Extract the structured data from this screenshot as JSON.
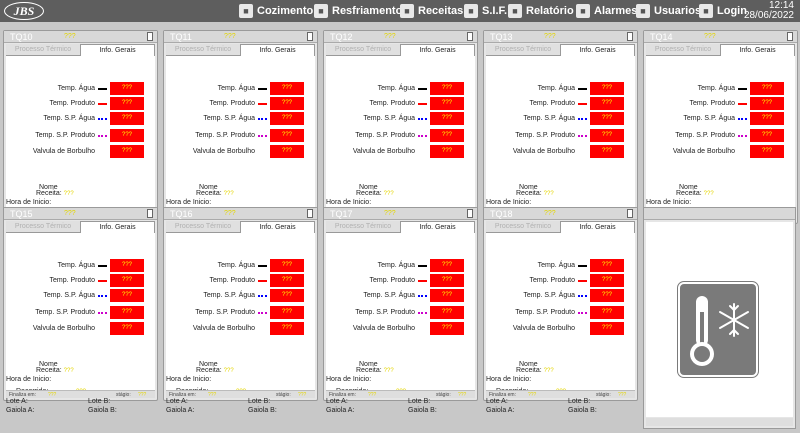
{
  "header": {
    "logo_text": "JBS",
    "nav": [
      {
        "label": "Cozimento",
        "icon": "cooking-icon"
      },
      {
        "label": "Resfriamento",
        "icon": "cooling-icon"
      },
      {
        "label": "Receitas",
        "icon": "recipes-icon"
      },
      {
        "label": "S.I.F.",
        "icon": "sif-icon"
      },
      {
        "label": "Relatório",
        "icon": "report-icon"
      },
      {
        "label": "Alarmes",
        "icon": "alarm-icon"
      },
      {
        "label": "Usuarios",
        "icon": "users-icon"
      },
      {
        "label": "Login",
        "icon": "login-icon"
      }
    ],
    "time": "12:14",
    "date": "28/06/2022"
  },
  "tabs": {
    "process": "Processo Térmico",
    "info": "Info. Gerais"
  },
  "rows": [
    {
      "label": "Temp. Água",
      "indicator_color": "#000000",
      "indicator_style": "solid"
    },
    {
      "label": "Temp. Produto",
      "indicator_color": "#ff0000",
      "indicator_style": "solid"
    },
    {
      "label": "Temp. S.P. Água",
      "indicator_color": "#0000ff",
      "indicator_style": "dotted"
    },
    {
      "label": "Temp. S.P. Produto",
      "indicator_color": "#cc00cc",
      "indicator_style": "dotted"
    },
    {
      "label": "Valvula de Borbulho",
      "indicator_color": "",
      "indicator_style": "none"
    }
  ],
  "value_placeholder": "???",
  "info_labels": {
    "nome": "Nome",
    "receita": "Receita:",
    "hora_inicio": "Hora de Inicio:",
    "decorrido": "Decorrido:",
    "lote_a": "Lote A:",
    "lote_b": "Lote B:",
    "gaiola_a": "Gaiola A:",
    "gaiola_b": "Gaiola B:",
    "finaliza_em": "Finaliza em:",
    "stagio": "stágio:"
  },
  "panels": [
    {
      "title": "TQ10"
    },
    {
      "title": "TQ11"
    },
    {
      "title": "TQ12"
    },
    {
      "title": "TQ13"
    },
    {
      "title": "TQ14"
    },
    {
      "title": "TQ15"
    },
    {
      "title": "TQ16"
    },
    {
      "title": "TQ17"
    },
    {
      "title": "TQ18"
    }
  ],
  "colors": {
    "alarm_red": "#ff0000",
    "placeholder_yellow": "#e4d600",
    "topbar": "#5e5e5e"
  }
}
